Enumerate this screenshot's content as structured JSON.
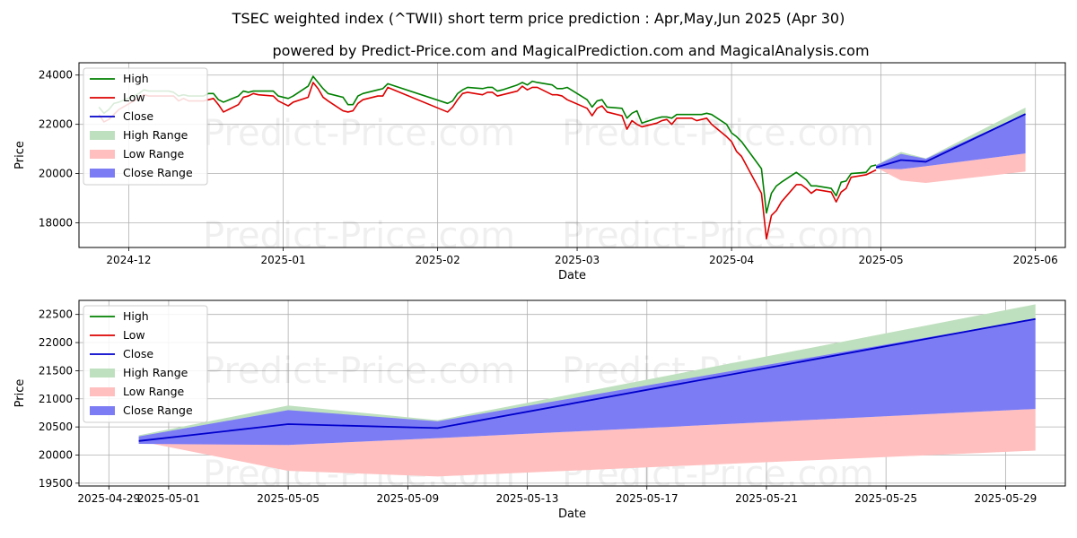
{
  "title": "TSEC weighted index (^TWII) short term price prediction : Apr,May,Jun 2025 (Apr 30)",
  "subtitle": "powered by Predict-Price.com and MagicalPrediction.com and MagicalAnalysis.com",
  "watermark": "Predict-Price.com",
  "colors": {
    "high": "#008000",
    "low": "#dd0000",
    "close": "#0000cc",
    "high_range": "#bfe0bf",
    "low_range": "#ffbfbf",
    "close_range": "#7c7cf5"
  },
  "chart_data": [
    {
      "type": "line",
      "xlabel": "Date",
      "ylabel": "Price",
      "xlim": [
        "2024-11-21",
        "2025-06-07"
      ],
      "ylim": [
        17000,
        24500
      ],
      "yticks": [
        18000,
        20000,
        22000,
        24000
      ],
      "xticks": [
        "2024-12",
        "2025-01",
        "2025-02",
        "2025-03",
        "2025-04",
        "2025-05",
        "2025-06"
      ],
      "grid": true,
      "legend": {
        "placement": "top-left",
        "entries": [
          "High",
          "Low",
          "Close",
          "High Range",
          "Low Range",
          "Close Range"
        ]
      },
      "history": {
        "high": [
          [
            "2024-11-25",
            22700
          ],
          [
            "2024-11-26",
            22450
          ],
          [
            "2024-11-27",
            22600
          ],
          [
            "2024-11-28",
            22850
          ],
          [
            "2024-11-29",
            22900
          ],
          [
            "2024-12-02",
            23150
          ],
          [
            "2024-12-03",
            23250
          ],
          [
            "2024-12-04",
            23400
          ],
          [
            "2024-12-05",
            23350
          ],
          [
            "2024-12-06",
            23350
          ],
          [
            "2024-12-09",
            23350
          ],
          [
            "2024-12-10",
            23300
          ],
          [
            "2024-12-11",
            23150
          ],
          [
            "2024-12-12",
            23200
          ],
          [
            "2024-12-13",
            23150
          ],
          [
            "2024-12-16",
            23150
          ],
          [
            "2024-12-17",
            23250
          ],
          [
            "2024-12-18",
            23250
          ],
          [
            "2024-12-19",
            23000
          ],
          [
            "2024-12-20",
            22900
          ],
          [
            "2024-12-23",
            23150
          ],
          [
            "2024-12-24",
            23350
          ],
          [
            "2024-12-25",
            23300
          ],
          [
            "2024-12-26",
            23350
          ],
          [
            "2024-12-27",
            23350
          ],
          [
            "2024-12-30",
            23350
          ],
          [
            "2024-12-31",
            23150
          ],
          [
            "2025-01-02",
            23050
          ],
          [
            "2025-01-03",
            23150
          ],
          [
            "2025-01-06",
            23550
          ],
          [
            "2025-01-07",
            23950
          ],
          [
            "2025-01-08",
            23700
          ],
          [
            "2025-01-09",
            23450
          ],
          [
            "2025-01-10",
            23250
          ],
          [
            "2025-01-13",
            23100
          ],
          [
            "2025-01-14",
            22800
          ],
          [
            "2025-01-15",
            22800
          ],
          [
            "2025-01-16",
            23150
          ],
          [
            "2025-01-17",
            23250
          ],
          [
            "2025-01-20",
            23400
          ],
          [
            "2025-01-21",
            23450
          ],
          [
            "2025-01-22",
            23650
          ],
          [
            "2025-02-03",
            22850
          ],
          [
            "2025-02-04",
            22950
          ],
          [
            "2025-02-05",
            23250
          ],
          [
            "2025-02-06",
            23400
          ],
          [
            "2025-02-07",
            23500
          ],
          [
            "2025-02-10",
            23450
          ],
          [
            "2025-02-11",
            23500
          ],
          [
            "2025-02-12",
            23500
          ],
          [
            "2025-02-13",
            23350
          ],
          [
            "2025-02-14",
            23400
          ],
          [
            "2025-02-17",
            23600
          ],
          [
            "2025-02-18",
            23700
          ],
          [
            "2025-02-19",
            23600
          ],
          [
            "2025-02-20",
            23750
          ],
          [
            "2025-02-21",
            23700
          ],
          [
            "2025-02-24",
            23600
          ],
          [
            "2025-02-25",
            23450
          ],
          [
            "2025-02-26",
            23450
          ],
          [
            "2025-02-27",
            23500
          ],
          [
            "2025-03-03",
            23000
          ],
          [
            "2025-03-04",
            22700
          ],
          [
            "2025-03-05",
            22950
          ],
          [
            "2025-03-06",
            23000
          ],
          [
            "2025-03-07",
            22700
          ],
          [
            "2025-03-10",
            22650
          ],
          [
            "2025-03-11",
            22250
          ],
          [
            "2025-03-12",
            22450
          ],
          [
            "2025-03-13",
            22550
          ],
          [
            "2025-03-14",
            22050
          ],
          [
            "2025-03-17",
            22250
          ],
          [
            "2025-03-18",
            22300
          ],
          [
            "2025-03-19",
            22300
          ],
          [
            "2025-03-20",
            22250
          ],
          [
            "2025-03-21",
            22400
          ],
          [
            "2025-03-24",
            22400
          ],
          [
            "2025-03-25",
            22400
          ],
          [
            "2025-03-26",
            22400
          ],
          [
            "2025-03-27",
            22450
          ],
          [
            "2025-03-28",
            22400
          ],
          [
            "2025-03-31",
            22000
          ],
          [
            "2025-04-01",
            21650
          ],
          [
            "2025-04-02",
            21500
          ],
          [
            "2025-04-03",
            21300
          ],
          [
            "2025-04-07",
            20200
          ],
          [
            "2025-04-08",
            18400
          ],
          [
            "2025-04-09",
            19200
          ],
          [
            "2025-04-10",
            19500
          ],
          [
            "2025-04-11",
            19650
          ],
          [
            "2025-04-14",
            20050
          ],
          [
            "2025-04-15",
            19900
          ],
          [
            "2025-04-16",
            19750
          ],
          [
            "2025-04-17",
            19500
          ],
          [
            "2025-04-18",
            19500
          ],
          [
            "2025-04-21",
            19400
          ],
          [
            "2025-04-22",
            19100
          ],
          [
            "2025-04-23",
            19650
          ],
          [
            "2025-04-24",
            19700
          ],
          [
            "2025-04-25",
            20000
          ],
          [
            "2025-04-28",
            20050
          ],
          [
            "2025-04-29",
            20300
          ],
          [
            "2025-04-30",
            20350
          ]
        ],
        "low": [
          [
            "2024-11-25",
            22400
          ],
          [
            "2024-11-26",
            22100
          ],
          [
            "2024-11-27",
            22200
          ],
          [
            "2024-11-28",
            22400
          ],
          [
            "2024-11-29",
            22600
          ],
          [
            "2024-12-02",
            22950
          ],
          [
            "2024-12-03",
            23050
          ],
          [
            "2024-12-04",
            23200
          ],
          [
            "2024-12-05",
            23150
          ],
          [
            "2024-12-06",
            23150
          ],
          [
            "2024-12-09",
            23150
          ],
          [
            "2024-12-10",
            23150
          ],
          [
            "2024-12-11",
            22950
          ],
          [
            "2024-12-12",
            23050
          ],
          [
            "2024-12-13",
            22950
          ],
          [
            "2024-12-16",
            22950
          ],
          [
            "2024-12-17",
            23000
          ],
          [
            "2024-12-18",
            23050
          ],
          [
            "2024-12-19",
            22800
          ],
          [
            "2024-12-20",
            22500
          ],
          [
            "2024-12-23",
            22800
          ],
          [
            "2024-12-24",
            23100
          ],
          [
            "2024-12-25",
            23150
          ],
          [
            "2024-12-26",
            23250
          ],
          [
            "2024-12-27",
            23200
          ],
          [
            "2024-12-30",
            23150
          ],
          [
            "2024-12-31",
            22950
          ],
          [
            "2025-01-02",
            22750
          ],
          [
            "2025-01-03",
            22900
          ],
          [
            "2025-01-06",
            23100
          ],
          [
            "2025-01-07",
            23700
          ],
          [
            "2025-01-08",
            23450
          ],
          [
            "2025-01-09",
            23100
          ],
          [
            "2025-01-10",
            22950
          ],
          [
            "2025-01-13",
            22550
          ],
          [
            "2025-01-14",
            22500
          ],
          [
            "2025-01-15",
            22550
          ],
          [
            "2025-01-16",
            22850
          ],
          [
            "2025-01-17",
            23000
          ],
          [
            "2025-01-20",
            23150
          ],
          [
            "2025-01-21",
            23150
          ],
          [
            "2025-01-22",
            23500
          ],
          [
            "2025-02-03",
            22500
          ],
          [
            "2025-02-04",
            22700
          ],
          [
            "2025-02-05",
            23000
          ],
          [
            "2025-02-06",
            23250
          ],
          [
            "2025-02-07",
            23300
          ],
          [
            "2025-02-10",
            23200
          ],
          [
            "2025-02-11",
            23300
          ],
          [
            "2025-02-12",
            23300
          ],
          [
            "2025-02-13",
            23150
          ],
          [
            "2025-02-14",
            23200
          ],
          [
            "2025-02-17",
            23350
          ],
          [
            "2025-02-18",
            23550
          ],
          [
            "2025-02-19",
            23400
          ],
          [
            "2025-02-20",
            23500
          ],
          [
            "2025-02-21",
            23500
          ],
          [
            "2025-02-24",
            23200
          ],
          [
            "2025-02-25",
            23200
          ],
          [
            "2025-02-26",
            23150
          ],
          [
            "2025-02-27",
            23000
          ],
          [
            "2025-03-03",
            22650
          ],
          [
            "2025-03-04",
            22350
          ],
          [
            "2025-03-05",
            22650
          ],
          [
            "2025-03-06",
            22750
          ],
          [
            "2025-03-07",
            22500
          ],
          [
            "2025-03-10",
            22350
          ],
          [
            "2025-03-11",
            21800
          ],
          [
            "2025-03-12",
            22150
          ],
          [
            "2025-03-13",
            22000
          ],
          [
            "2025-03-14",
            21900
          ],
          [
            "2025-03-17",
            22050
          ],
          [
            "2025-03-18",
            22150
          ],
          [
            "2025-03-19",
            22200
          ],
          [
            "2025-03-20",
            22000
          ],
          [
            "2025-03-21",
            22250
          ],
          [
            "2025-03-24",
            22250
          ],
          [
            "2025-03-25",
            22150
          ],
          [
            "2025-03-26",
            22200
          ],
          [
            "2025-03-27",
            22250
          ],
          [
            "2025-03-28",
            22000
          ],
          [
            "2025-03-31",
            21500
          ],
          [
            "2025-04-01",
            21300
          ],
          [
            "2025-04-02",
            20900
          ],
          [
            "2025-04-03",
            20700
          ],
          [
            "2025-04-07",
            19200
          ],
          [
            "2025-04-08",
            17350
          ],
          [
            "2025-04-09",
            18300
          ],
          [
            "2025-04-10",
            18500
          ],
          [
            "2025-04-11",
            18850
          ],
          [
            "2025-04-14",
            19550
          ],
          [
            "2025-04-15",
            19550
          ],
          [
            "2025-04-16",
            19400
          ],
          [
            "2025-04-17",
            19200
          ],
          [
            "2025-04-18",
            19350
          ],
          [
            "2025-04-21",
            19250
          ],
          [
            "2025-04-22",
            18850
          ],
          [
            "2025-04-23",
            19250
          ],
          [
            "2025-04-24",
            19400
          ],
          [
            "2025-04-25",
            19850
          ],
          [
            "2025-04-28",
            19950
          ],
          [
            "2025-04-29",
            20050
          ],
          [
            "2025-04-30",
            20150
          ]
        ]
      }
    },
    {
      "type": "line",
      "xlabel": "Date",
      "ylabel": "Price",
      "xlim": [
        "2025-04-28",
        "2025-05-31"
      ],
      "ylim": [
        19450,
        22750
      ],
      "yticks": [
        19500,
        20000,
        20500,
        21000,
        21500,
        22000,
        22500
      ],
      "xticks": [
        "2025-04-29",
        "2025-05-01",
        "2025-05-05",
        "2025-05-09",
        "2025-05-13",
        "2025-05-17",
        "2025-05-21",
        "2025-05-25",
        "2025-05-29"
      ],
      "grid": true,
      "legend": {
        "placement": "top-left",
        "entries": [
          "High",
          "Low",
          "Close",
          "High Range",
          "Low Range",
          "Close Range"
        ]
      },
      "forecast": {
        "x": [
          "2025-04-30",
          "2025-05-05",
          "2025-05-10",
          "2025-05-30"
        ],
        "close": [
          20250,
          20550,
          20480,
          22420
        ],
        "high_range": {
          "upper": [
            20350,
            20880,
            20620,
            22680
          ],
          "lower": [
            20250,
            20600,
            20480,
            22420
          ]
        },
        "low_range": {
          "upper": [
            20250,
            20180,
            20300,
            20820
          ],
          "lower": [
            20250,
            19720,
            19620,
            20080
          ]
        },
        "close_range": {
          "upper": [
            20330,
            20800,
            20600,
            22420
          ],
          "lower": [
            20200,
            20180,
            20300,
            20820
          ]
        }
      }
    }
  ]
}
